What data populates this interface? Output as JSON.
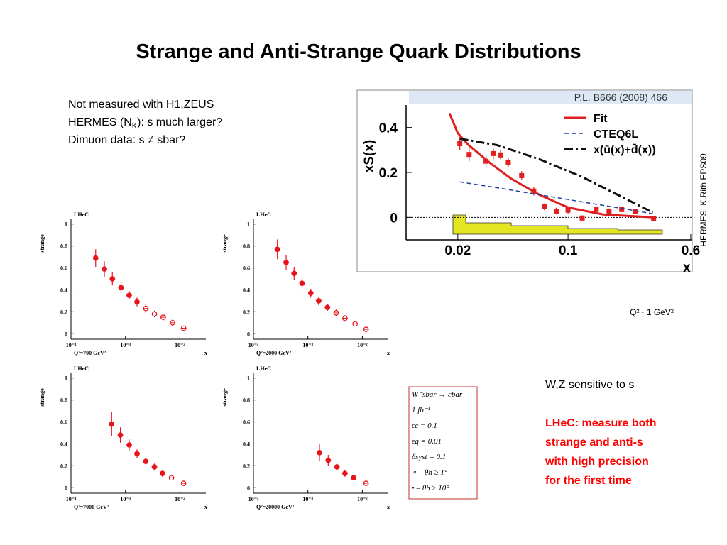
{
  "title": "Strange and Anti-Strange Quark Distributions",
  "notes": [
    [
      "Not measured with H1,ZEUS"
    ],
    [
      "HERMES (N",
      "K",
      "): s much larger?"
    ],
    [
      "Dimuon data: s ≠ sbar?"
    ]
  ],
  "side_credit": "HERMES, K.Rith EPS09",
  "hermes_scale": "Q²~ 1 GeV²",
  "wz_note": "W,Z sensitive to s",
  "conclusion": [
    "LHeC: measure both",
    "strange and anti-s",
    "with high precision",
    "for the first time"
  ],
  "table_lines": [
    "W⁻sbar → cbar",
    "1 fb⁻¹",
    "εc = 0.1",
    "εq = 0.01",
    "δsyst = 0.1",
    "∘ – θh ≥ 1°",
    "• – θh ≥ 10°"
  ],
  "chart_data": [
    {
      "type": "scatter",
      "title": "LHeC",
      "ylabel": "strange",
      "xlabel": "x",
      "annotation": "Q²=700 GeV²",
      "xscale": "log",
      "xlim": [
        0.0001,
        0.03
      ],
      "ylim": [
        -0.05,
        1.05
      ],
      "xticks": [
        {
          "value": 0.0001,
          "label": "10⁻⁴"
        },
        {
          "value": 0.001,
          "label": "10⁻³"
        },
        {
          "value": 0.01,
          "label": "10⁻²"
        }
      ],
      "yticks": [
        0,
        0.2,
        0.4,
        0.6,
        0.8,
        1
      ],
      "series": [
        {
          "color": "#e8141c",
          "marker": "circle",
          "x": [
            0.000284,
            0.00041,
            0.000575,
            0.00083,
            0.00117,
            0.00163,
            0.00236,
            0.00341,
            0.00493,
            0.00736,
            0.0117
          ],
          "values": [
            0.69,
            0.59,
            0.5,
            0.42,
            0.35,
            0.29,
            0.23,
            0.18,
            0.15,
            0.1,
            0.05
          ],
          "errors": [
            0.08,
            0.07,
            0.06,
            0.05,
            0.04,
            0.04,
            0.04,
            0.03,
            0.03,
            0.03,
            0.015
          ],
          "markers": [
            "filled",
            "filled",
            "filled",
            "filled",
            "filled",
            "filled",
            "open",
            "open",
            "open",
            "open",
            "open"
          ]
        }
      ]
    },
    {
      "type": "scatter",
      "title": "LHeC",
      "ylabel": "strange",
      "xlabel": "x",
      "annotation": "Q²=2000 GeV²",
      "xscale": "log",
      "xlim": [
        0.0001,
        0.03
      ],
      "ylim": [
        -0.05,
        1.05
      ],
      "xticks": [
        {
          "value": 0.0001,
          "label": "10⁻⁴"
        },
        {
          "value": 0.001,
          "label": "10⁻³"
        },
        {
          "value": 0.01,
          "label": "10⁻²"
        }
      ],
      "yticks": [
        0,
        0.2,
        0.4,
        0.6,
        0.8,
        1
      ],
      "series": [
        {
          "color": "#e8141c",
          "marker": "circle",
          "x": [
            0.000275,
            0.000398,
            0.000558,
            0.000782,
            0.00113,
            0.00158,
            0.00229,
            0.00331,
            0.00479,
            0.00736,
            0.0117
          ],
          "values": [
            0.77,
            0.65,
            0.55,
            0.46,
            0.37,
            0.3,
            0.24,
            0.19,
            0.14,
            0.09,
            0.04
          ],
          "errors": [
            0.09,
            0.07,
            0.06,
            0.05,
            0.04,
            0.04,
            0.03,
            0.03,
            0.03,
            0.02,
            0.015
          ],
          "markers": [
            "filled",
            "filled",
            "filled",
            "filled",
            "filled",
            "filled",
            "filled",
            "open",
            "open",
            "open",
            "open"
          ]
        }
      ]
    },
    {
      "type": "scatter",
      "title": "LHeC",
      "ylabel": "strange",
      "xlabel": "x",
      "annotation": "Q²=7000 GeV²",
      "xscale": "log",
      "xlim": [
        0.0001,
        0.03
      ],
      "ylim": [
        -0.05,
        1.05
      ],
      "xticks": [
        {
          "value": 0.0001,
          "label": "10⁻⁴"
        },
        {
          "value": 0.001,
          "label": "10⁻³"
        },
        {
          "value": 0.01,
          "label": "10⁻²"
        }
      ],
      "yticks": [
        0,
        0.2,
        0.4,
        0.6,
        0.8,
        1
      ],
      "series": [
        {
          "color": "#e8141c",
          "marker": "circle",
          "x": [
            0.000558,
            0.000807,
            0.00117,
            0.00163,
            0.00236,
            0.00341,
            0.00479,
            0.007,
            0.0117
          ],
          "values": [
            0.58,
            0.48,
            0.39,
            0.31,
            0.24,
            0.19,
            0.13,
            0.09,
            0.04
          ],
          "errors": [
            0.11,
            0.07,
            0.05,
            0.04,
            0.03,
            0.03,
            0.03,
            0.02,
            0.015
          ],
          "markers": [
            "filled",
            "filled",
            "filled",
            "filled",
            "filled",
            "filled",
            "filled",
            "open",
            "open"
          ]
        }
      ]
    },
    {
      "type": "scatter",
      "title": "LHeC",
      "ylabel": "strange",
      "xlabel": "x",
      "annotation": "Q²=20000 GeV²",
      "xscale": "log",
      "xlim": [
        0.0001,
        0.03
      ],
      "ylim": [
        -0.05,
        1.05
      ],
      "xticks": [
        {
          "value": 0.0001,
          "label": "10⁻⁴"
        },
        {
          "value": 0.001,
          "label": "10⁻³"
        },
        {
          "value": 0.01,
          "label": "10⁻²"
        }
      ],
      "yticks": [
        0,
        0.2,
        0.4,
        0.6,
        0.8,
        1
      ],
      "series": [
        {
          "color": "#e8141c",
          "marker": "circle",
          "x": [
            0.00163,
            0.00236,
            0.00341,
            0.00479,
            0.00692,
            0.0117
          ],
          "values": [
            0.32,
            0.25,
            0.19,
            0.13,
            0.09,
            0.04
          ],
          "errors": [
            0.08,
            0.05,
            0.04,
            0.03,
            0.02,
            0.015
          ],
          "markers": [
            "filled",
            "filled",
            "filled",
            "filled",
            "filled",
            "open"
          ]
        }
      ]
    },
    {
      "type": "scatter",
      "title": "P.L. B666 (2008) 466",
      "ylabel": "xS(x)",
      "xlabel": "x",
      "xscale": "log",
      "xlim": [
        0.0094,
        0.613
      ],
      "ylim": [
        -0.1,
        0.5
      ],
      "xticks": [
        0.02,
        0.1,
        0.6
      ],
      "yticks": [
        0,
        0.2,
        0.4
      ],
      "series": [
        {
          "color": "#e02020",
          "marker": "square",
          "x": [
            0.0206,
            0.0236,
            0.0302,
            0.0336,
            0.0373,
            0.0418,
            0.0508,
            0.0607,
            0.0708,
            0.0842,
            0.1,
            0.123,
            0.151,
            0.182,
            0.219,
            0.266,
            0.349
          ],
          "values": [
            0.328,
            0.28,
            0.25,
            0.284,
            0.278,
            0.243,
            0.186,
            0.117,
            0.047,
            0.028,
            0.032,
            -0.003,
            0.035,
            0.028,
            0.035,
            0.025,
            -0.006
          ],
          "errors": [
            0.03,
            0.03,
            0.025,
            0.025,
            0.02,
            0.02,
            0.02,
            0.02,
            0.015,
            0.015,
            0.015,
            0.012,
            0.012,
            0.012,
            0.012,
            0.012,
            0.012
          ]
        },
        {
          "name": "Fit",
          "color": "#e02020",
          "dash": "solid",
          "width": 3,
          "x": [
            0.0177,
            0.02,
            0.0234,
            0.0319,
            0.0434,
            0.0657,
            0.1,
            0.167,
            0.345
          ],
          "values": [
            0.464,
            0.375,
            0.322,
            0.243,
            0.173,
            0.101,
            0.044,
            0.013,
            0
          ]
        },
        {
          "name": "CTEQ6L",
          "color": "#2040a0",
          "dash": "dashed",
          "width": 1.5,
          "x": [
            0.0206,
            0.0354,
            0.0657,
            0.123,
            0.228,
            0.345
          ],
          "values": [
            0.158,
            0.132,
            0.101,
            0.069,
            0.038,
            0.016
          ]
        },
        {
          "name": "x(ū(x)+d̄(x))",
          "color": "#111111",
          "dash": "dashdot",
          "width": 3,
          "x": [
            0.0206,
            0.0354,
            0.0657,
            0.123,
            0.206,
            0.345
          ],
          "values": [
            0.35,
            0.322,
            0.259,
            0.18,
            0.101,
            0.022
          ]
        }
      ]
    }
  ]
}
